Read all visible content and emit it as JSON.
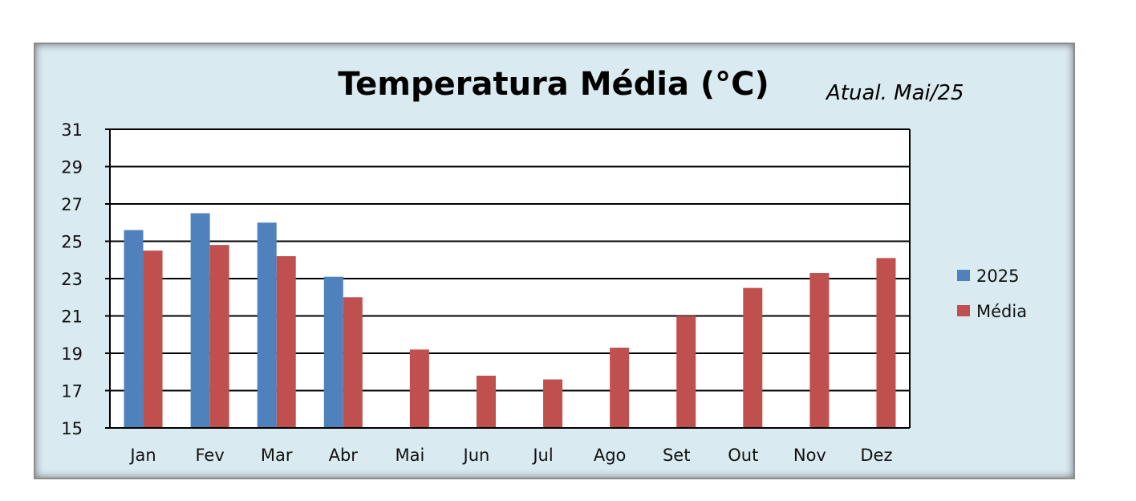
{
  "chart_data": {
    "type": "bar",
    "title": "Temperatura Média (°C)",
    "subtitle": "Atual. Mai/25",
    "categories": [
      "Jan",
      "Fev",
      "Mar",
      "Abr",
      "Mai",
      "Jun",
      "Jul",
      "Ago",
      "Set",
      "Out",
      "Nov",
      "Dez"
    ],
    "series": [
      {
        "name": "2025",
        "color": "#4f81bd",
        "values": [
          25.6,
          26.5,
          26.0,
          23.1,
          null,
          null,
          null,
          null,
          null,
          null,
          null,
          null
        ]
      },
      {
        "name": "Média",
        "color": "#c0504d",
        "values": [
          24.5,
          24.8,
          24.2,
          22.0,
          19.2,
          17.8,
          17.6,
          19.3,
          21.0,
          22.5,
          23.3,
          24.1
        ]
      }
    ],
    "ylim": [
      15,
      31
    ],
    "yticks": [
      15,
      17,
      19,
      21,
      23,
      25,
      27,
      29,
      31
    ],
    "grid": true,
    "legend_position": "right"
  }
}
